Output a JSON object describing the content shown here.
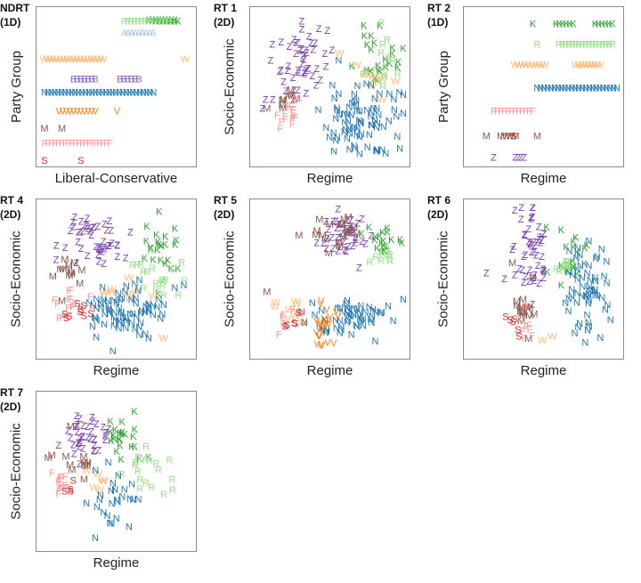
{
  "colors": {
    "K": "#2ca02c",
    "R": "#98df8a",
    "A": "#aec7e8",
    "W": "#ffbb78",
    "N": "#1f77b4",
    "V": "#ff7f0e",
    "M": "#8c564b",
    "F": "#ff9896",
    "S": "#d62728",
    "Z": "#7a3eb1",
    "B": "#9467bd"
  },
  "panels": [
    {
      "title_line1": "NDRT",
      "title_line2": "(1D)",
      "ylabel": "Party Group",
      "xlabel": "Liberal-Conservative",
      "chart_data": {
        "type": "scatter",
        "dimensions": 1,
        "xlim": [
          0,
          1
        ],
        "ylim": [
          0,
          1
        ],
        "series": [
          {
            "name": "K",
            "rows": [
              [
                0.97,
                0.85,
                0.72,
                0.9
              ],
              [
                0.96,
                0.8,
                0.77,
                0.92
              ]
            ]
          },
          {
            "name": "R",
            "rows": [
              [
                0.96,
                0.69,
                0.55,
                0.88
              ]
            ]
          },
          {
            "name": "A",
            "rows": [
              [
                0.88,
                0.61,
                0.55,
                0.75
              ]
            ]
          },
          {
            "name": "W",
            "rows": [
              [
                0.7,
                0.3,
                0.0,
                0.4
              ],
              [
                0.7,
                0.97,
                0.97,
                0.97
              ]
            ]
          },
          {
            "name": "B",
            "rows": [
              [
                0.56,
                0.28,
                0.2,
                0.35
              ],
              [
                0.56,
                0.58,
                0.52,
                0.65
              ]
            ]
          },
          {
            "name": "N",
            "rows": [
              [
                0.47,
                0.25,
                0.0,
                0.75
              ]
            ]
          },
          {
            "name": "V",
            "rows": [
              [
                0.34,
                0.28,
                0.1,
                0.35
              ],
              [
                0.34,
                0.5,
                0.5,
                0.5
              ]
            ]
          },
          {
            "name": "M",
            "rows": [
              [
                0.22,
                0.0,
                0.0,
                0.0
              ],
              [
                0.22,
                0.12,
                0.12,
                0.12
              ]
            ]
          },
          {
            "name": "F",
            "rows": [
              [
                0.12,
                0.25,
                0.0,
                0.45
              ]
            ]
          },
          {
            "name": "S",
            "rows": [
              [
                0.0,
                0.0,
                0.0,
                0.0
              ],
              [
                0.0,
                0.25,
                0.25,
                0.25
              ]
            ]
          }
        ]
      }
    },
    {
      "title_line1": "RT 1",
      "title_line2": "(2D)",
      "ylabel": "Socio-Economic",
      "xlabel": "Regime",
      "chart_data": {
        "type": "scatter",
        "dimensions": 2,
        "xlim": [
          0,
          1
        ],
        "ylim": [
          0,
          1
        ],
        "series": [
          {
            "name": "Z",
            "cx": 0.3,
            "cy": 0.7,
            "sx": 0.09,
            "sy": 0.12,
            "n": 48,
            "extra": [
              [
                0.05,
                0.42
              ],
              [
                0.03,
                0.36
              ],
              [
                0.1,
                0.42
              ],
              [
                0.3,
                0.96
              ]
            ]
          },
          {
            "name": "K",
            "cx": 0.85,
            "cy": 0.7,
            "sx": 0.07,
            "sy": 0.1,
            "n": 22,
            "extra": [
              [
                0.78,
                0.86
              ],
              [
                0.96,
                0.64
              ]
            ]
          },
          {
            "name": "R",
            "cx": 0.88,
            "cy": 0.65,
            "sx": 0.06,
            "sy": 0.09,
            "n": 14,
            "extra": [
              [
                0.85,
                0.95
              ]
            ]
          },
          {
            "name": "W",
            "cx": 0.78,
            "cy": 0.58,
            "sx": 0.07,
            "sy": 0.07,
            "n": 8,
            "extra": [
              [
                0.56,
                0.74
              ]
            ]
          },
          {
            "name": "N",
            "cx": 0.7,
            "cy": 0.28,
            "sx": 0.14,
            "sy": 0.13,
            "n": 80,
            "extra": [
              [
                0.88,
                0.05
              ]
            ]
          },
          {
            "name": "M",
            "cx": 0.22,
            "cy": 0.42,
            "sx": 0.06,
            "sy": 0.04,
            "n": 8,
            "extra": [
              [
                0.06,
                0.36
              ]
            ]
          },
          {
            "name": "F",
            "cx": 0.24,
            "cy": 0.34,
            "sx": 0.06,
            "sy": 0.05,
            "n": 14,
            "extra": [
              [
                0.15,
                0.22
              ]
            ]
          }
        ]
      }
    },
    {
      "title_line1": "RT 2",
      "title_line2": "(1D)",
      "ylabel": "Party Group",
      "xlabel": "Regime",
      "chart_data": {
        "type": "scatter",
        "dimensions": 1,
        "xlim": [
          0,
          1
        ],
        "ylim": [
          0,
          1
        ],
        "series": [
          {
            "name": "K",
            "rows": [
              [
                0.94,
                0.42,
                0.42,
                0.42
              ],
              [
                0.94,
                0.55,
                0.58,
                0.7
              ],
              [
                0.94,
                0.85,
                0.85,
                0.97
              ]
            ]
          },
          {
            "name": "R",
            "rows": [
              [
                0.8,
                0.45,
                0.45,
                0.45
              ],
              [
                0.8,
                0.55,
                0.6,
                0.97
              ]
            ]
          },
          {
            "name": "W",
            "rows": [
              [
                0.66,
                0.4,
                0.3,
                0.5
              ],
              [
                0.66,
                0.8,
                0.72,
                0.88
              ]
            ]
          },
          {
            "name": "N",
            "rows": [
              [
                0.5,
                0.7,
                0.45,
                1.0
              ]
            ]
          },
          {
            "name": "F",
            "rows": [
              [
                0.34,
                0.3,
                0.15,
                0.42
              ]
            ]
          },
          {
            "name": "M",
            "rows": [
              [
                0.17,
                0.1,
                0.1,
                0.1
              ],
              [
                0.17,
                0.25,
                0.2,
                0.3
              ],
              [
                0.17,
                0.45,
                0.45,
                0.45
              ]
            ]
          },
          {
            "name": "S",
            "rows": [
              [
                0.17,
                0.29,
                0.29,
                0.29
              ]
            ]
          },
          {
            "name": "Z",
            "rows": [
              [
                0.02,
                0.15,
                0.15,
                0.15
              ],
              [
                0.02,
                0.32,
                0.3,
                0.36
              ]
            ]
          }
        ]
      }
    },
    {
      "title_line1": "RT 4",
      "title_line2": "(2D)",
      "ylabel": "Socio-Economic",
      "xlabel": "Regime",
      "chart_data": {
        "type": "scatter",
        "dimensions": 2,
        "xlim": [
          0,
          1
        ],
        "ylim": [
          0,
          1
        ],
        "series": [
          {
            "name": "Z",
            "cx": 0.35,
            "cy": 0.78,
            "sx": 0.1,
            "sy": 0.09,
            "n": 45,
            "extra": [
              [
                0.18,
                0.84
              ],
              [
                0.08,
                0.64
              ],
              [
                0.22,
                0.62
              ]
            ]
          },
          {
            "name": "K",
            "cx": 0.8,
            "cy": 0.72,
            "sx": 0.06,
            "sy": 0.13,
            "n": 22,
            "extra": [
              [
                0.92,
                0.58
              ]
            ]
          },
          {
            "name": "R",
            "cx": 0.75,
            "cy": 0.55,
            "sx": 0.08,
            "sy": 0.1,
            "n": 18,
            "extra": [
              [
                0.82,
                0.4
              ]
            ]
          },
          {
            "name": "W",
            "cx": 0.6,
            "cy": 0.4,
            "sx": 0.1,
            "sy": 0.08,
            "n": 9,
            "extra": [
              [
                0.82,
                0.1
              ]
            ]
          },
          {
            "name": "N",
            "cx": 0.55,
            "cy": 0.28,
            "sx": 0.14,
            "sy": 0.1,
            "n": 75,
            "extra": [
              [
                0.4,
                0.45
              ]
            ]
          },
          {
            "name": "M",
            "cx": 0.2,
            "cy": 0.58,
            "sx": 0.07,
            "sy": 0.06,
            "n": 12,
            "extra": [
              [
                0.12,
                0.36
              ]
            ]
          },
          {
            "name": "F",
            "cx": 0.2,
            "cy": 0.32,
            "sx": 0.07,
            "sy": 0.06,
            "n": 14,
            "extra": [
              [
                0.1,
                0.24
              ]
            ]
          },
          {
            "name": "S",
            "cx": 0.25,
            "cy": 0.3,
            "sx": 0.06,
            "sy": 0.05,
            "n": 8,
            "extra": [
              [
                0.15,
                0.24
              ]
            ]
          }
        ]
      }
    },
    {
      "title_line1": "RT 5",
      "title_line2": "(2D)",
      "ylabel": "Socio-Economic",
      "xlabel": "Regime",
      "chart_data": {
        "type": "scatter",
        "dimensions": 2,
        "xlim": [
          0,
          1
        ],
        "ylim": [
          0,
          1
        ],
        "series": [
          {
            "name": "Z",
            "cx": 0.6,
            "cy": 0.82,
            "sx": 0.08,
            "sy": 0.07,
            "n": 42,
            "extra": [
              [
                0.55,
                0.99
              ]
            ]
          },
          {
            "name": "M",
            "cx": 0.5,
            "cy": 0.82,
            "sx": 0.1,
            "sy": 0.06,
            "n": 20,
            "extra": [
              [
                0.06,
                0.42
              ]
            ]
          },
          {
            "name": "K",
            "cx": 0.86,
            "cy": 0.75,
            "sx": 0.06,
            "sy": 0.08,
            "n": 18,
            "extra": [
              [
                0.98,
                0.78
              ]
            ]
          },
          {
            "name": "R",
            "cx": 0.86,
            "cy": 0.65,
            "sx": 0.05,
            "sy": 0.05,
            "n": 8,
            "extra": []
          },
          {
            "name": "W",
            "cx": 0.25,
            "cy": 0.3,
            "sx": 0.1,
            "sy": 0.04,
            "n": 8,
            "extra": [
              [
                0.12,
                0.35
              ]
            ]
          },
          {
            "name": "N",
            "cx": 0.65,
            "cy": 0.25,
            "sx": 0.15,
            "sy": 0.08,
            "n": 55,
            "extra": [
              [
                0.93,
                0.22
              ]
            ]
          },
          {
            "name": "V",
            "cx": 0.45,
            "cy": 0.18,
            "sx": 0.04,
            "sy": 0.09,
            "n": 26,
            "extra": []
          },
          {
            "name": "F",
            "cx": 0.2,
            "cy": 0.23,
            "sx": 0.05,
            "sy": 0.04,
            "n": 8,
            "extra": []
          },
          {
            "name": "S",
            "cx": 0.22,
            "cy": 0.22,
            "sx": 0.04,
            "sy": 0.03,
            "n": 5,
            "extra": []
          }
        ]
      }
    },
    {
      "title_line1": "RT 6",
      "title_line2": "(2D)",
      "ylabel": "Socio-Economic",
      "xlabel": "Regime",
      "chart_data": {
        "type": "scatter",
        "dimensions": 2,
        "xlim": [
          0,
          1
        ],
        "ylim": [
          0,
          1
        ],
        "series": [
          {
            "name": "Z",
            "cx": 0.42,
            "cy": 0.68,
            "sx": 0.06,
            "sy": 0.18,
            "n": 48,
            "extra": [
              [
                0.1,
                0.55
              ],
              [
                0.34,
                0.92
              ]
            ]
          },
          {
            "name": "M",
            "cx": 0.36,
            "cy": 0.28,
            "sx": 0.05,
            "sy": 0.08,
            "n": 16,
            "extra": [
              [
                0.28,
                0.62
              ],
              [
                0.42,
                0.52
              ]
            ]
          },
          {
            "name": "K",
            "cx": 0.67,
            "cy": 0.66,
            "sx": 0.06,
            "sy": 0.08,
            "n": 18,
            "extra": [
              [
                0.78,
                0.72
              ]
            ]
          },
          {
            "name": "R",
            "cx": 0.62,
            "cy": 0.6,
            "sx": 0.05,
            "sy": 0.05,
            "n": 10,
            "extra": []
          },
          {
            "name": "N",
            "cx": 0.8,
            "cy": 0.45,
            "sx": 0.08,
            "sy": 0.15,
            "n": 55,
            "extra": [
              [
                0.93,
                0.48
              ]
            ]
          },
          {
            "name": "F",
            "cx": 0.38,
            "cy": 0.2,
            "sx": 0.04,
            "sy": 0.06,
            "n": 8,
            "extra": [
              [
                0.36,
                0.1
              ]
            ]
          },
          {
            "name": "S",
            "cx": 0.28,
            "cy": 0.18,
            "sx": 0.04,
            "sy": 0.04,
            "n": 6,
            "extra": []
          },
          {
            "name": "W",
            "cx": 0.55,
            "cy": 0.1,
            "sx": 0.04,
            "sy": 0.02,
            "n": 2,
            "extra": []
          }
        ]
      }
    },
    {
      "title_line1": "RT 7",
      "title_line2": "(2D)",
      "ylabel": "Socio-Economic",
      "xlabel": "Regime",
      "chart_data": {
        "type": "scatter",
        "dimensions": 2,
        "xlim": [
          0,
          1
        ],
        "ylim": [
          0,
          1
        ],
        "series": [
          {
            "name": "Z",
            "cx": 0.3,
            "cy": 0.75,
            "sx": 0.08,
            "sy": 0.07,
            "n": 38,
            "extra": []
          },
          {
            "name": "K",
            "cx": 0.55,
            "cy": 0.7,
            "sx": 0.06,
            "sy": 0.08,
            "n": 22,
            "extra": [
              [
                0.62,
                0.92
              ]
            ]
          },
          {
            "name": "R",
            "cx": 0.68,
            "cy": 0.52,
            "sx": 0.1,
            "sy": 0.08,
            "n": 16,
            "extra": [
              [
                0.7,
                0.68
              ],
              [
                0.88,
                0.45
              ]
            ]
          },
          {
            "name": "M",
            "cx": 0.2,
            "cy": 0.58,
            "sx": 0.07,
            "sy": 0.05,
            "n": 10,
            "extra": [
              [
                0.05,
                0.62
              ],
              [
                0.18,
                0.82
              ]
            ]
          },
          {
            "name": "F",
            "cx": 0.12,
            "cy": 0.45,
            "sx": 0.04,
            "sy": 0.05,
            "n": 12,
            "extra": []
          },
          {
            "name": "S",
            "cx": 0.18,
            "cy": 0.4,
            "sx": 0.03,
            "sy": 0.03,
            "n": 4,
            "extra": []
          },
          {
            "name": "W",
            "cx": 0.35,
            "cy": 0.42,
            "sx": 0.06,
            "sy": 0.06,
            "n": 6,
            "extra": []
          },
          {
            "name": "N",
            "cx": 0.42,
            "cy": 0.3,
            "sx": 0.1,
            "sy": 0.12,
            "n": 24,
            "extra": [
              [
                0.35,
                0.05
              ],
              [
                0.45,
                0.15
              ]
            ]
          }
        ]
      }
    }
  ]
}
